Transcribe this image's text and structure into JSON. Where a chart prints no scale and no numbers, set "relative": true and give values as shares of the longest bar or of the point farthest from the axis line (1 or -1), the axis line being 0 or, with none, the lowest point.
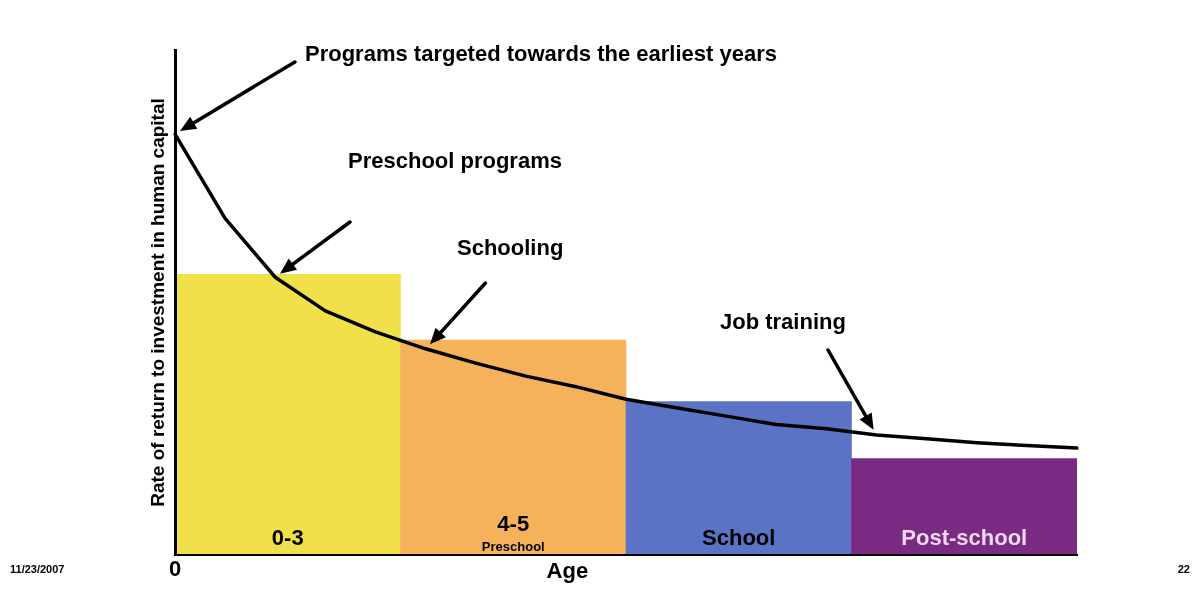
{
  "chart_data": [
    {
      "type": "bar",
      "relative": true,
      "xlabel": "Age",
      "ylabel": "Rate of return to investment in human capital",
      "legend": false,
      "categories": [
        "0-3",
        "4-5 Preschool",
        "School",
        "Post-school"
      ],
      "values": [
        1,
        0.766,
        0.547,
        0.344
      ],
      "colors": [
        "#f2e04a",
        "#f5b25a",
        "#5a73c4",
        "#7a2a80"
      ],
      "annotations": [
        "0",
        "11/23/2007",
        "22"
      ]
    },
    {
      "type": "line",
      "relative": true,
      "legend": false,
      "marker": "none",
      "categories": [
        null,
        null,
        null,
        null,
        null,
        null,
        null,
        null,
        null,
        null,
        null,
        null,
        null,
        null,
        null,
        null,
        null,
        null,
        null
      ],
      "series": [
        {
          "color": "#000000",
          "values": [
            1,
            0.8,
            0.66,
            0.58,
            0.53,
            0.49,
            0.456,
            0.425,
            0.4,
            0.37,
            0.35,
            0.33,
            0.31,
            0.3,
            0.285,
            0.276,
            0.267,
            0.26,
            0.254
          ]
        }
      ],
      "annotations": [
        "Programs targeted towards the earliest years",
        "Preschool programs",
        "Schooling",
        "Job training"
      ]
    }
  ]
}
